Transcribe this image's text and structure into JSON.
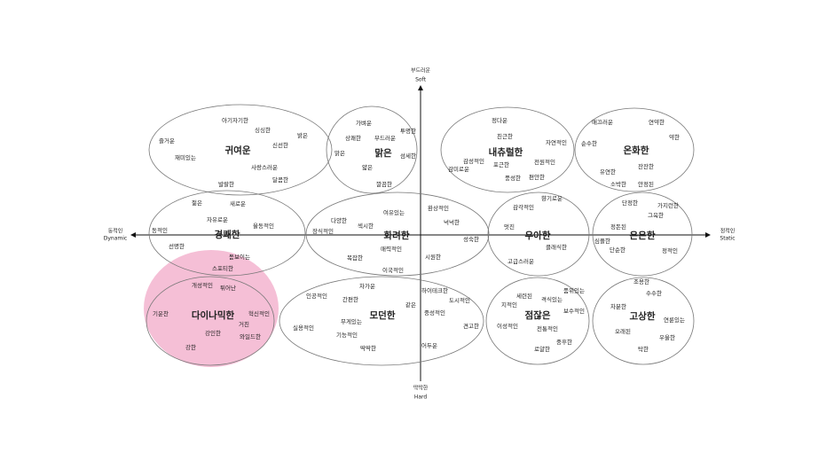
{
  "axes": {
    "top": {
      "ko": "부드러운",
      "en": "Soft"
    },
    "bottom": {
      "ko": "딱딱한",
      "en": "Hard"
    },
    "left": {
      "ko": "동적인",
      "en": "Dynamic"
    },
    "right": {
      "ko": "정적인",
      "en": "Static"
    }
  },
  "groups": [
    {
      "title": "귀여운",
      "words": [
        "아기자기한",
        "싱싱한",
        "밝은",
        "즐거운",
        "신선한",
        "재미있는",
        "사랑스러운",
        "달콤한",
        "발랄한"
      ]
    },
    {
      "title": "맑은",
      "words": [
        "가벼운",
        "투명한",
        "상쾌한",
        "부드러운",
        "맑은",
        "섬세한",
        "얇은",
        "깔끔한"
      ]
    },
    {
      "title": "내츄럴한",
      "words": [
        "정다운",
        "친근한",
        "자연적인",
        "감성적인",
        "포근한",
        "전원적인",
        "감미로운",
        "풍성한",
        "편안한"
      ]
    },
    {
      "title": "온화한",
      "words": [
        "매끄러운",
        "연약한",
        "약한",
        "순수한",
        "유연한",
        "잔잔한",
        "소박한",
        "안정된"
      ]
    },
    {
      "title": "경쾌한",
      "words": [
        "젊은",
        "새로운",
        "자유로운",
        "율동적인",
        "동적인",
        "선명한",
        "돋보이는",
        "스포티한"
      ]
    },
    {
      "title": "화려한",
      "words": [
        "환상적인",
        "여유있는",
        "다양한",
        "넉넉한",
        "섹시한",
        "장식적인",
        "성숙한",
        "매력적인",
        "시원한",
        "복잡한",
        "이국적인"
      ]
    },
    {
      "title": "우아한",
      "words": [
        "향기로운",
        "감각적인",
        "멋진",
        "클래식한",
        "고급스러운"
      ]
    },
    {
      "title": "은은한",
      "words": [
        "단정한",
        "가지런한",
        "그윽한",
        "정돈된",
        "심플한",
        "단순한",
        "정적인"
      ]
    },
    {
      "title": "다이나믹한",
      "words": [
        "개성적인",
        "튀어난",
        "기운찬",
        "혁신적인",
        "거친",
        "강인한",
        "와일드한",
        "강한"
      ]
    },
    {
      "title": "모던한",
      "words": [
        "차가운",
        "하이테크한",
        "인공적인",
        "간편한",
        "도시적인",
        "같은",
        "중성적인",
        "무게있는",
        "실용적인",
        "견고한",
        "기능적인",
        "어두운",
        "딱딱한"
      ]
    },
    {
      "title": "점잖은",
      "words": [
        "품위있는",
        "세련된",
        "격식있는",
        "지적인",
        "보수적인",
        "이성적인",
        "전통적인",
        "중후한",
        "로얄한"
      ]
    },
    {
      "title": "고상한",
      "words": [
        "조용한",
        "수수한",
        "차분한",
        "연륜있는",
        "오래된",
        "우울한",
        "탁한"
      ]
    }
  ]
}
